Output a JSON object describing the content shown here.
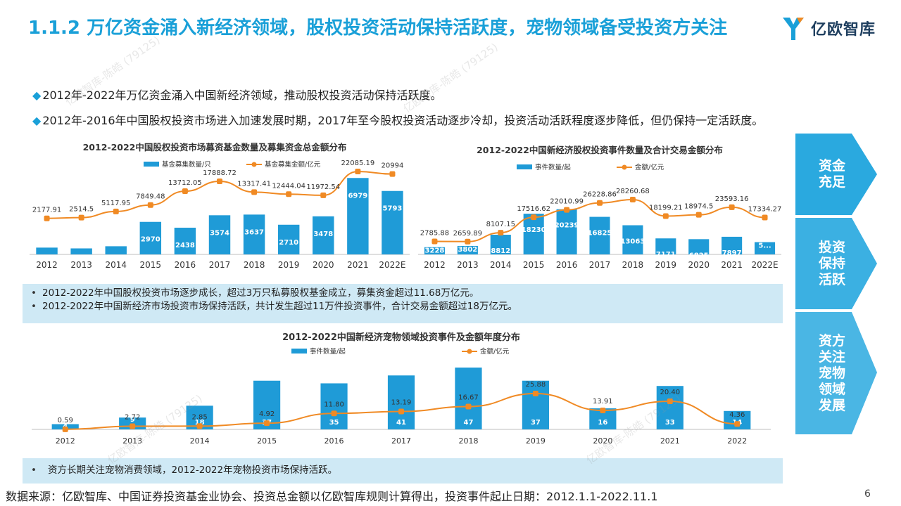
{
  "header": {
    "title": "1.1.2 万亿资金涌入新经济领域，股权投资活动保持活跃度，宠物领域备受投资方关注",
    "logo_text": "亿欧智库"
  },
  "bullets": [
    "2012年-2022年万亿资金涌入中国新经济领域，推动股权投资活动保持活跃度。",
    "2012年-2016年中国股权投资市场进入加速发展时期，2017年至今股权投资活动逐步冷却，投资活动活跃程度逐步降低，但仍保持一定活跃度。"
  ],
  "notes": {
    "top": [
      "2012-2022年中国股权投资市场逐步成长，超过3万只私募股权基金成立，募集资金超过11.68万亿元。",
      "2012-2022年中国新经济市场投资市场保持活跃，共计发生超过11万件投资事件，合计交易金额超过18万亿元。"
    ],
    "bottom": [
      "资方长期关注宠物消费领域，2012-2022年宠物投资市场保持活跃。"
    ]
  },
  "side_labels": [
    "资金\n充足",
    "投资\n保持\n活跃",
    "资方\n关注\n宠物\n领域\n发展"
  ],
  "source": "数据来源：亿欧智库、中国证券投资基金业协会、投资总金额以亿欧智库规则计算得出，投资事件起止日期：2012.1.1-2022.11.1",
  "page_number": "6",
  "watermark": "亿欧智库-陈皓 (79125)",
  "colors": {
    "bar": "#1f9bd7",
    "line": "#f08a24",
    "accent": "#1aa0d8",
    "side_box": "#2aa9df",
    "note_bg": "#cfe9f5"
  },
  "chart_data": [
    {
      "type": "bar",
      "title": "2012-2022中国股权投资市场募资基金数量及募集资金总金额分布",
      "categories": [
        "2012",
        "2013",
        "2014",
        "2015",
        "2016",
        "2017",
        "2018",
        "2019",
        "2020",
        "2021",
        "2022E"
      ],
      "series": [
        {
          "name": "基金募集数量/只",
          "type": "bar",
          "values": [
            621,
            548,
            745,
            2970,
            2438,
            3574,
            3637,
            2710,
            3478,
            6979,
            5793
          ],
          "labels": [
            "621",
            "548",
            "745",
            "2970",
            "2438",
            "3574",
            "3637",
            "2710",
            "3478",
            "6979",
            "5793"
          ]
        },
        {
          "name": "基金募集金额/亿元",
          "type": "line",
          "values": [
            2177.91,
            2514.5,
            5117.95,
            7849.48,
            13712.05,
            17888.72,
            13317.41,
            12444.04,
            11972.54,
            22085.19,
            20994
          ],
          "labels": [
            "2177.91",
            "2514.5",
            "5117.95",
            "7849.48",
            "13712.05",
            "17888.72",
            "13317.41",
            "12444.04",
            "11972.54",
            "22085.19",
            "20994"
          ]
        }
      ],
      "legend": "top",
      "grid": false
    },
    {
      "type": "bar",
      "title": "2012-2022中国新经济股权投资事件数量及合计交易金额分布",
      "categories": [
        "2012",
        "2013",
        "2014",
        "2015",
        "2016",
        "2017",
        "2018",
        "2019",
        "2020",
        "2021",
        "2022E"
      ],
      "series": [
        {
          "name": "事件数量/起",
          "type": "bar",
          "values": [
            3228,
            3802,
            8812,
            18230,
            20239,
            16825,
            13063,
            7171,
            6825,
            7897,
            5500
          ],
          "labels": [
            "3228",
            "3802",
            "8812",
            "18230",
            "20239",
            "16825",
            "13063",
            "7171",
            "6825",
            "7897",
            "5..."
          ]
        },
        {
          "name": "金额/亿元",
          "type": "line",
          "values": [
            2785.88,
            2659.89,
            8107.15,
            17516.62,
            22010.99,
            26228.86,
            28260.68,
            18199.21,
            18974.5,
            23593.16,
            17334.27
          ],
          "labels": [
            "2785.88",
            "2659.89",
            "8107.15",
            "17516.62",
            "22010.99",
            "26228.86",
            "28260.68",
            "18199.21",
            "18974.5",
            "23593.16",
            "17334.27"
          ]
        }
      ],
      "legend": "top",
      "grid": false
    },
    {
      "type": "bar",
      "title": "2012-2022中国新经济宠物领域投资事件及金额年度分布",
      "categories": [
        "2012",
        "2013",
        "2014",
        "2015",
        "2016",
        "2017",
        "2018",
        "2019",
        "2020",
        "2021",
        "2022"
      ],
      "series": [
        {
          "name": "事件数量/起",
          "type": "bar",
          "values": [
            4,
            9,
            18,
            37,
            35,
            41,
            47,
            37,
            16,
            33,
            14
          ],
          "labels": [
            "4",
            "9",
            "18",
            "37",
            "35",
            "41",
            "47",
            "37",
            "16",
            "33",
            "14"
          ]
        },
        {
          "name": "金额/亿元",
          "type": "line",
          "values": [
            0.59,
            2.72,
            2.85,
            4.92,
            11.8,
            13.19,
            16.67,
            25.88,
            13.91,
            20.4,
            4.36
          ],
          "labels": [
            "0.59",
            "2.72",
            "2.85",
            "4.92",
            "11.80",
            "13.19",
            "16.67",
            "25.88",
            "13.91",
            "20.40",
            "4.36"
          ]
        }
      ],
      "legend": "top",
      "grid": false
    }
  ]
}
